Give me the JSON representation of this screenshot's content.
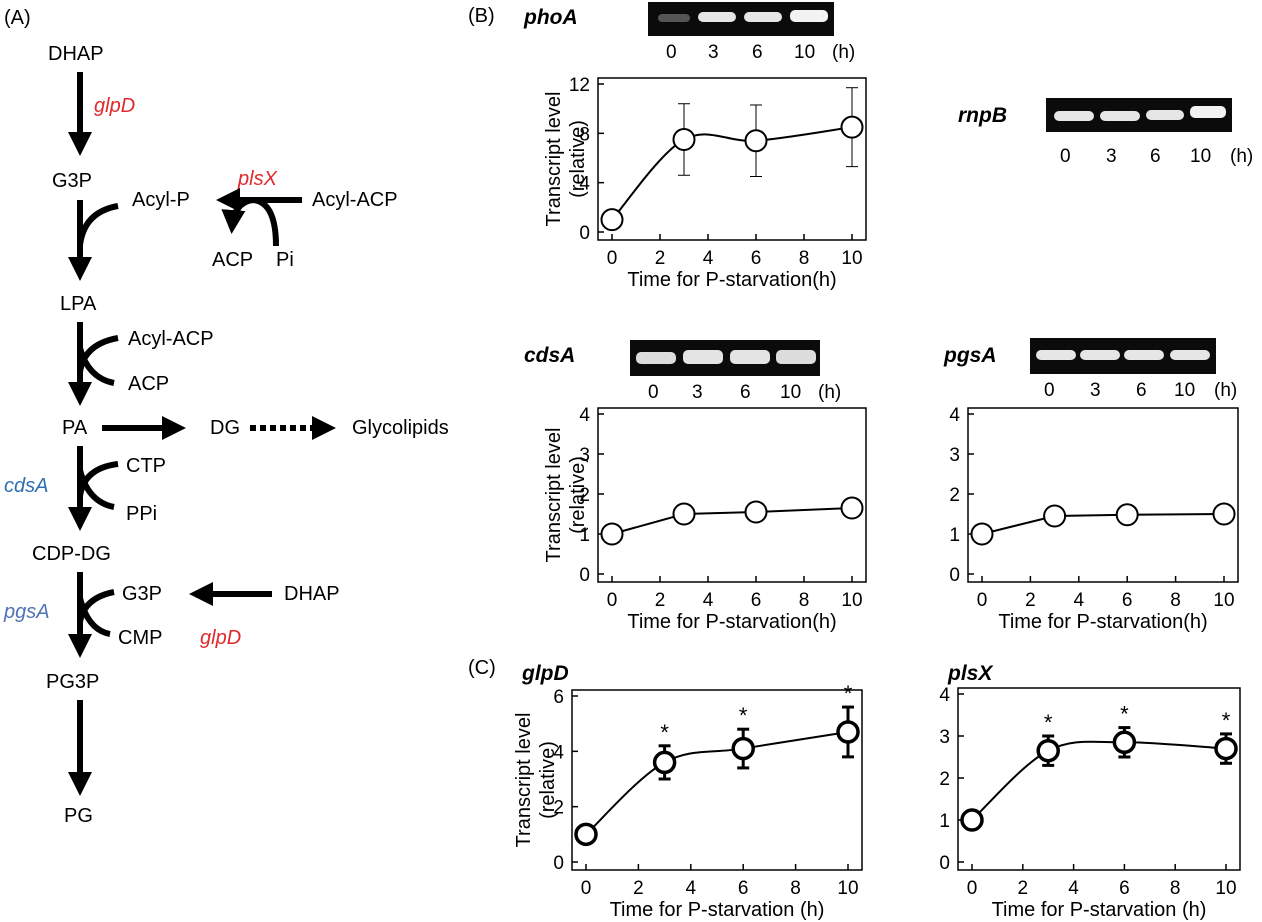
{
  "panels": {
    "A": "(A)",
    "B": "(B)",
    "C": "(C)"
  },
  "pathway": {
    "dhap_top": "DHAP",
    "glpD_top": "glpD",
    "g3p": "G3P",
    "plsX": "plsX",
    "acyl_p": "Acyl-P",
    "acyl_acp_1": "Acyl-ACP",
    "acp_1": "ACP",
    "pi": "Pi",
    "lpa": "LPA",
    "acyl_acp_2": "Acyl-ACP",
    "acp_2": "ACP",
    "pa": "PA",
    "dg": "DG",
    "glycolipids": "Glycolipids",
    "cdsA": "cdsA",
    "ctp": "CTP",
    "ppi": "PPi",
    "cdp_dg": "CDP-DG",
    "pgsA": "pgsA",
    "g3p_2": "G3P",
    "dhap_2": "DHAP",
    "glpD_2": "glpD",
    "cmp": "CMP",
    "pg3p": "PG3P",
    "pg": "PG"
  },
  "gels": {
    "lanes": [
      "0",
      "3",
      "6",
      "10"
    ],
    "unit": "(h)",
    "phoA": "phoA",
    "rnpB": "rnpB",
    "cdsA": "cdsA",
    "pgsA": "pgsA"
  },
  "colors": {
    "red": "#e0292b",
    "blue": "#2e6fb0"
  },
  "chart_data": [
    {
      "id": "phoA",
      "type": "line",
      "title": "",
      "xlabel": "Time for P-starvation(h)",
      "ylabel": [
        "Transcript level",
        "(relative)"
      ],
      "x": [
        0,
        3,
        6,
        10
      ],
      "values": [
        1.0,
        7.5,
        7.4,
        8.5
      ],
      "errors": [
        0,
        2.9,
        2.9,
        3.2
      ],
      "xlim": [
        0,
        10
      ],
      "ylim": [
        0,
        12
      ],
      "xticks": [
        "0",
        "2",
        "4",
        "6",
        "8",
        "10"
      ],
      "yticks": [
        "0",
        "4",
        "8",
        "12"
      ]
    },
    {
      "id": "cdsA",
      "type": "line",
      "title": "",
      "xlabel": "Time for P-starvation(h)",
      "ylabel": [
        "Transcript level",
        "(relative)"
      ],
      "x": [
        0,
        3,
        6,
        10
      ],
      "values": [
        1.0,
        1.5,
        1.55,
        1.65
      ],
      "errors": [
        0,
        0,
        0,
        0
      ],
      "xlim": [
        0,
        10
      ],
      "ylim": [
        0,
        4
      ],
      "xticks": [
        "0",
        "2",
        "4",
        "6",
        "8",
        "10"
      ],
      "yticks": [
        "0",
        "1",
        "2",
        "3",
        "4"
      ]
    },
    {
      "id": "pgsA",
      "type": "line",
      "title": "",
      "xlabel": "Time for P-starvation(h)",
      "ylabel": [],
      "x": [
        0,
        3,
        6,
        10
      ],
      "values": [
        1.0,
        1.45,
        1.48,
        1.5
      ],
      "errors": [
        0,
        0,
        0,
        0
      ],
      "xlim": [
        0,
        10
      ],
      "ylim": [
        0,
        4
      ],
      "xticks": [
        "0",
        "2",
        "4",
        "6",
        "8",
        "10"
      ],
      "yticks": [
        "0",
        "1",
        "2",
        "3",
        "4"
      ]
    },
    {
      "id": "glpD",
      "type": "line",
      "title": "glpD",
      "xlabel": "Time for P-starvation (h)",
      "ylabel": [
        "Transcript level",
        "(relative)"
      ],
      "x": [
        0,
        3,
        6,
        10
      ],
      "values": [
        1.0,
        3.6,
        4.1,
        4.7
      ],
      "errors": [
        0,
        0.6,
        0.7,
        0.9
      ],
      "marks": [
        "",
        "*",
        "*",
        "*"
      ],
      "xlim": [
        0,
        10
      ],
      "ylim": [
        0,
        6
      ],
      "xticks": [
        "0",
        "2",
        "4",
        "6",
        "8",
        "10"
      ],
      "yticks": [
        "0",
        "2",
        "4",
        "6"
      ]
    },
    {
      "id": "plsX",
      "type": "line",
      "title": "plsX",
      "xlabel": "Time for P-starvation (h)",
      "ylabel": [],
      "x": [
        0,
        3,
        6,
        10
      ],
      "values": [
        1.0,
        2.65,
        2.85,
        2.7
      ],
      "errors": [
        0,
        0.35,
        0.35,
        0.35
      ],
      "marks": [
        "",
        "*",
        "*",
        "*"
      ],
      "xlim": [
        0,
        10
      ],
      "ylim": [
        0,
        4
      ],
      "xticks": [
        "0",
        "2",
        "4",
        "6",
        "8",
        "10"
      ],
      "yticks": [
        "0",
        "1",
        "2",
        "3",
        "4"
      ]
    }
  ]
}
